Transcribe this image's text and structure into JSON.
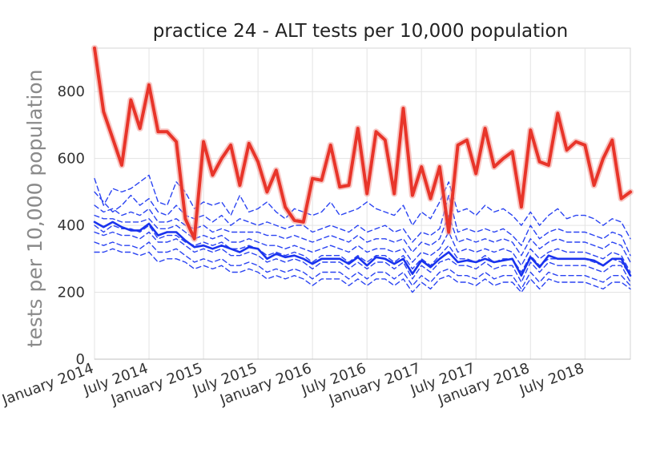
{
  "chart_data": {
    "type": "line",
    "title": "practice 24 - ALT tests per 10,000 population",
    "xlabel": "",
    "ylabel": "tests per 10,000 population",
    "x_start": "2014-01",
    "x_end": "2018-12",
    "xlim": [
      "2014-01",
      "2018-12"
    ],
    "ylim": [
      0,
      930
    ],
    "yticks": [
      0,
      200,
      400,
      600,
      800
    ],
    "xtick_labels": [
      "January 2014",
      "July 2014",
      "January 2015",
      "July 2015",
      "January 2016",
      "July 2016",
      "January 2017",
      "July 2017",
      "January 2018",
      "July 2018"
    ],
    "grid": true,
    "legend": "none",
    "series": [
      {
        "role": "practice",
        "color": "#e8352a",
        "style": "solid-thick",
        "values": [
          930,
          740,
          660,
          580,
          775,
          690,
          820,
          680,
          680,
          650,
          420,
          360,
          650,
          550,
          600,
          640,
          520,
          645,
          590,
          500,
          565,
          455,
          415,
          410,
          540,
          535,
          640,
          515,
          520,
          690,
          495,
          680,
          655,
          495,
          750,
          490,
          575,
          480,
          575,
          380,
          640,
          655,
          555,
          690,
          575,
          600,
          620,
          455,
          685,
          590,
          580,
          735,
          625,
          650,
          640,
          520,
          600,
          655,
          480,
          500
        ]
      },
      {
        "role": "median",
        "color": "#1a33ee",
        "style": "solid",
        "values": [
          410,
          395,
          410,
          395,
          385,
          385,
          405,
          370,
          380,
          380,
          355,
          335,
          340,
          330,
          340,
          330,
          320,
          335,
          330,
          300,
          315,
          305,
          310,
          300,
          285,
          300,
          300,
          300,
          285,
          305,
          280,
          305,
          300,
          285,
          300,
          255,
          295,
          275,
          300,
          320,
          290,
          295,
          290,
          300,
          290,
          295,
          300,
          250,
          305,
          275,
          310,
          300,
          300,
          300,
          300,
          295,
          280,
          300,
          300,
          250
        ]
      },
      {
        "role": "percentile",
        "color": "#2b44f2",
        "style": "dashed",
        "values": [
          540,
          460,
          510,
          500,
          510,
          530,
          550,
          470,
          460,
          530,
          500,
          450,
          470,
          460,
          470,
          430,
          490,
          440,
          450,
          470,
          440,
          420,
          450,
          440,
          430,
          440,
          470,
          430,
          440,
          450,
          470,
          450,
          440,
          430,
          460,
          400,
          440,
          420,
          470,
          530,
          440,
          450,
          430,
          460,
          440,
          450,
          430,
          400,
          440,
          400,
          430,
          450,
          420,
          430,
          430,
          420,
          400,
          420,
          410,
          360
        ]
      },
      {
        "role": "percentile",
        "color": "#2b44f2",
        "style": "dashed",
        "values": [
          500,
          470,
          440,
          460,
          490,
          460,
          480,
          440,
          430,
          460,
          430,
          420,
          430,
          410,
          430,
          400,
          420,
          410,
          400,
          410,
          400,
          390,
          400,
          400,
          380,
          390,
          400,
          390,
          380,
          400,
          380,
          390,
          400,
          380,
          390,
          350,
          380,
          370,
          390,
          490,
          380,
          390,
          380,
          390,
          380,
          390,
          370,
          340,
          400,
          360,
          380,
          390,
          380,
          380,
          380,
          370,
          360,
          380,
          370,
          310
        ]
      },
      {
        "role": "percentile",
        "color": "#2b44f2",
        "style": "dashed",
        "values": [
          460,
          440,
          450,
          430,
          440,
          430,
          450,
          410,
          410,
          420,
          400,
          390,
          400,
          380,
          390,
          380,
          380,
          380,
          380,
          370,
          370,
          360,
          370,
          360,
          350,
          360,
          370,
          360,
          350,
          370,
          350,
          360,
          360,
          350,
          360,
          320,
          350,
          340,
          360,
          430,
          350,
          360,
          350,
          360,
          350,
          360,
          350,
          310,
          360,
          330,
          350,
          360,
          350,
          350,
          350,
          340,
          330,
          350,
          340,
          290
        ]
      },
      {
        "role": "percentile",
        "color": "#2b44f2",
        "style": "dashed",
        "values": [
          430,
          420,
          420,
          410,
          410,
          410,
          420,
          390,
          390,
          400,
          380,
          360,
          370,
          360,
          370,
          350,
          350,
          360,
          350,
          340,
          340,
          330,
          340,
          330,
          320,
          330,
          340,
          330,
          320,
          340,
          320,
          330,
          330,
          320,
          330,
          290,
          320,
          310,
          330,
          380,
          320,
          330,
          320,
          330,
          320,
          330,
          320,
          280,
          330,
          300,
          320,
          330,
          320,
          320,
          320,
          310,
          300,
          320,
          310,
          260
        ]
      },
      {
        "role": "percentile",
        "color": "#2b44f2",
        "style": "dashed",
        "values": [
          380,
          370,
          380,
          370,
          370,
          360,
          380,
          350,
          350,
          360,
          340,
          320,
          330,
          320,
          330,
          310,
          310,
          320,
          310,
          290,
          300,
          290,
          300,
          290,
          270,
          290,
          290,
          290,
          270,
          290,
          270,
          290,
          290,
          270,
          290,
          240,
          280,
          260,
          290,
          300,
          280,
          280,
          270,
          290,
          270,
          280,
          280,
          230,
          290,
          260,
          290,
          280,
          280,
          280,
          280,
          270,
          260,
          280,
          280,
          230
        ]
      },
      {
        "role": "percentile",
        "color": "#2b44f2",
        "style": "dashed",
        "values": [
          350,
          340,
          350,
          340,
          340,
          330,
          350,
          320,
          320,
          330,
          310,
          290,
          300,
          290,
          300,
          280,
          280,
          290,
          280,
          260,
          270,
          260,
          270,
          260,
          240,
          260,
          260,
          260,
          240,
          260,
          240,
          260,
          260,
          240,
          260,
          220,
          250,
          230,
          260,
          270,
          250,
          250,
          240,
          260,
          240,
          250,
          250,
          210,
          260,
          230,
          260,
          250,
          250,
          250,
          250,
          240,
          230,
          250,
          250,
          220
        ]
      },
      {
        "role": "percentile",
        "color": "#2b44f2",
        "style": "dashed",
        "values": [
          320,
          320,
          330,
          320,
          320,
          310,
          320,
          290,
          300,
          300,
          290,
          270,
          280,
          270,
          280,
          260,
          260,
          270,
          260,
          240,
          250,
          240,
          250,
          240,
          220,
          240,
          240,
          240,
          220,
          240,
          220,
          240,
          240,
          220,
          240,
          200,
          230,
          210,
          240,
          250,
          230,
          230,
          220,
          240,
          220,
          230,
          230,
          200,
          240,
          210,
          240,
          230,
          230,
          230,
          230,
          220,
          210,
          230,
          230,
          210
        ]
      },
      {
        "role": "percentile",
        "color": "#2b44f2",
        "style": "dashed",
        "values": [
          400,
          380,
          400,
          390,
          390,
          380,
          400,
          360,
          370,
          370,
          350,
          340,
          350,
          340,
          350,
          330,
          330,
          340,
          330,
          310,
          320,
          310,
          320,
          310,
          290,
          310,
          310,
          310,
          290,
          310,
          290,
          310,
          310,
          290,
          310,
          270,
          300,
          280,
          310,
          340,
          300,
          300,
          290,
          310,
          290,
          300,
          300,
          260,
          310,
          280,
          300,
          300,
          300,
          300,
          300,
          290,
          280,
          300,
          290,
          250
        ]
      }
    ]
  }
}
